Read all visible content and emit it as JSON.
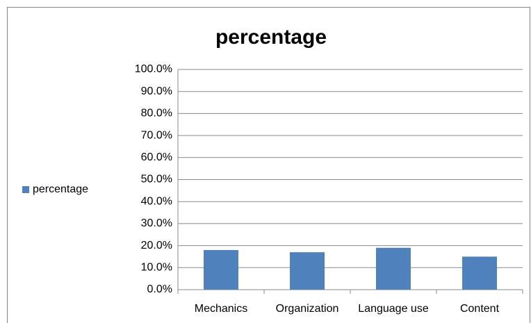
{
  "chart_data": {
    "type": "bar",
    "title": "percentage",
    "categories": [
      "Mechanics",
      "Organization",
      "Language use",
      "Content"
    ],
    "series": [
      {
        "name": "percentage",
        "color": "#4f81bd",
        "values": [
          18,
          17,
          19,
          15
        ]
      }
    ],
    "ylim": [
      0,
      100
    ],
    "yticks": [
      {
        "value": 0,
        "label": "0.0%"
      },
      {
        "value": 10,
        "label": "10.0%"
      },
      {
        "value": 20,
        "label": "20.0%"
      },
      {
        "value": 30,
        "label": "30.0%"
      },
      {
        "value": 40,
        "label": "40.0%"
      },
      {
        "value": 50,
        "label": "50.0%"
      },
      {
        "value": 60,
        "label": "60.0%"
      },
      {
        "value": 70,
        "label": "70.0%"
      },
      {
        "value": 80,
        "label": "80.0%"
      },
      {
        "value": 90,
        "label": "90.0%"
      },
      {
        "value": 100,
        "label": "100.0%"
      }
    ],
    "grid": true,
    "legend": "left"
  }
}
